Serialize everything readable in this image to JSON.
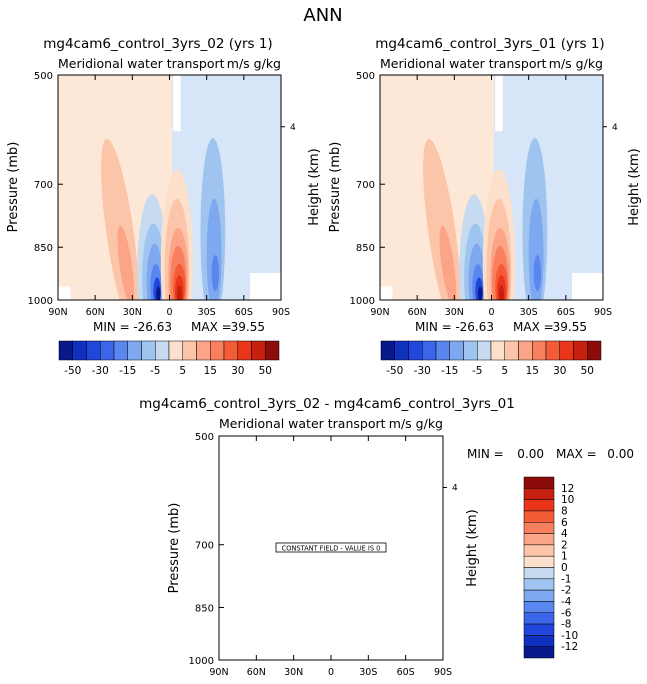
{
  "page_title": "ANN",
  "colors": {
    "pos": [
      "#fde0cc",
      "#fcc4a8",
      "#fba487",
      "#f8805f",
      "#f35c37",
      "#e9361b",
      "#c7200f",
      "#8c0c0a"
    ],
    "neg": [
      "#c6dbef",
      "#9ec4ef",
      "#7ea8f0",
      "#5a86ef",
      "#3c66ea",
      "#2146dc",
      "#1030be",
      "#08198c"
    ],
    "white": "#ffffff",
    "bg_pos": "#fde8d8",
    "bg_neg": "#d6e6f8"
  },
  "panels": [
    {
      "title": "mg4cam6_control_3yrs_02 (yrs 1)",
      "subtitle": "Meridional water transport",
      "units": "m/s g/kg",
      "y_label": "Pressure (mb)",
      "y2_label": "Height (km)",
      "y_ticks": [
        "500",
        "700",
        "850",
        "1000"
      ],
      "y2_tick": "4",
      "x_ticks": [
        "90N",
        "60N",
        "30N",
        "0",
        "30S",
        "60S",
        "90S"
      ],
      "min_label": "MIN =",
      "min_value": "-26.63",
      "max_label": "MAX =",
      "max_value": "39.55"
    },
    {
      "title": "mg4cam6_control_3yrs_01 (yrs 1)",
      "subtitle": "Meridional water transport",
      "units": "m/s g/kg",
      "y_label": "Pressure (mb)",
      "y2_label": "Height (km)",
      "y_ticks": [
        "500",
        "700",
        "850",
        "1000"
      ],
      "y2_tick": "4",
      "x_ticks": [
        "90N",
        "60N",
        "30N",
        "0",
        "30S",
        "60S",
        "90S"
      ],
      "min_label": "MIN =",
      "min_value": "-26.63",
      "max_label": "MAX =",
      "max_value": "39.55"
    },
    {
      "title": "mg4cam6_control_3yrs_02 - mg4cam6_control_3yrs_01",
      "subtitle": "Meridional water transport",
      "units": "m/s g/kg",
      "y_label": "Pressure (mb)",
      "y2_label": "Height (km)",
      "y_ticks": [
        "500",
        "700",
        "850",
        "1000"
      ],
      "y2_tick": "4",
      "x_ticks": [
        "90N",
        "60N",
        "30N",
        "0",
        "30S",
        "60S",
        "90S"
      ],
      "min_label": "MIN =",
      "min_value": "0.00",
      "max_label": "MAX =",
      "max_value": "0.00",
      "constant_label": "CONSTANT FIELD - VALUE IS 0"
    }
  ],
  "colorbar_top": {
    "labels": [
      "-50",
      "-30",
      "-15",
      "-5",
      "5",
      "15",
      "30",
      "50"
    ]
  },
  "colorbar_diff": {
    "labels": [
      "12",
      "10",
      "8",
      "6",
      "4",
      "2",
      "1",
      "0",
      "-1",
      "-2",
      "-4",
      "-6",
      "-8",
      "-10",
      "-12"
    ]
  },
  "chart_data": [
    {
      "type": "heatmap",
      "title": "mg4cam6_control_3yrs_02 (yrs 1)",
      "subtitle": "Meridional water transport",
      "units": "m/s g/kg",
      "xlabel": "",
      "ylabel": "Pressure (mb)",
      "x_range": [
        "90N",
        "90S"
      ],
      "y_range": [
        500,
        1000
      ],
      "min": -26.63,
      "max": 39.55,
      "contour_levels": [
        -50,
        -40,
        -30,
        -20,
        -15,
        -10,
        -5,
        -1,
        1,
        5,
        10,
        15,
        20,
        30,
        40,
        50
      ]
    },
    {
      "type": "heatmap",
      "title": "mg4cam6_control_3yrs_01 (yrs 1)",
      "subtitle": "Meridional water transport",
      "units": "m/s g/kg",
      "xlabel": "",
      "ylabel": "Pressure (mb)",
      "x_range": [
        "90N",
        "90S"
      ],
      "y_range": [
        500,
        1000
      ],
      "min": -26.63,
      "max": 39.55,
      "contour_levels": [
        -50,
        -40,
        -30,
        -20,
        -15,
        -10,
        -5,
        -1,
        1,
        5,
        10,
        15,
        20,
        30,
        40,
        50
      ]
    },
    {
      "type": "heatmap",
      "title": "mg4cam6_control_3yrs_02 - mg4cam6_control_3yrs_01",
      "subtitle": "Meridional water transport",
      "units": "m/s g/kg",
      "xlabel": "",
      "ylabel": "Pressure (mb)",
      "x_range": [
        "90N",
        "90S"
      ],
      "y_range": [
        500,
        1000
      ],
      "min": 0.0,
      "max": 0.0,
      "contour_levels": [
        -12,
        -10,
        -8,
        -6,
        -4,
        -2,
        -1,
        0,
        1,
        2,
        4,
        6,
        8,
        10,
        12
      ]
    }
  ]
}
